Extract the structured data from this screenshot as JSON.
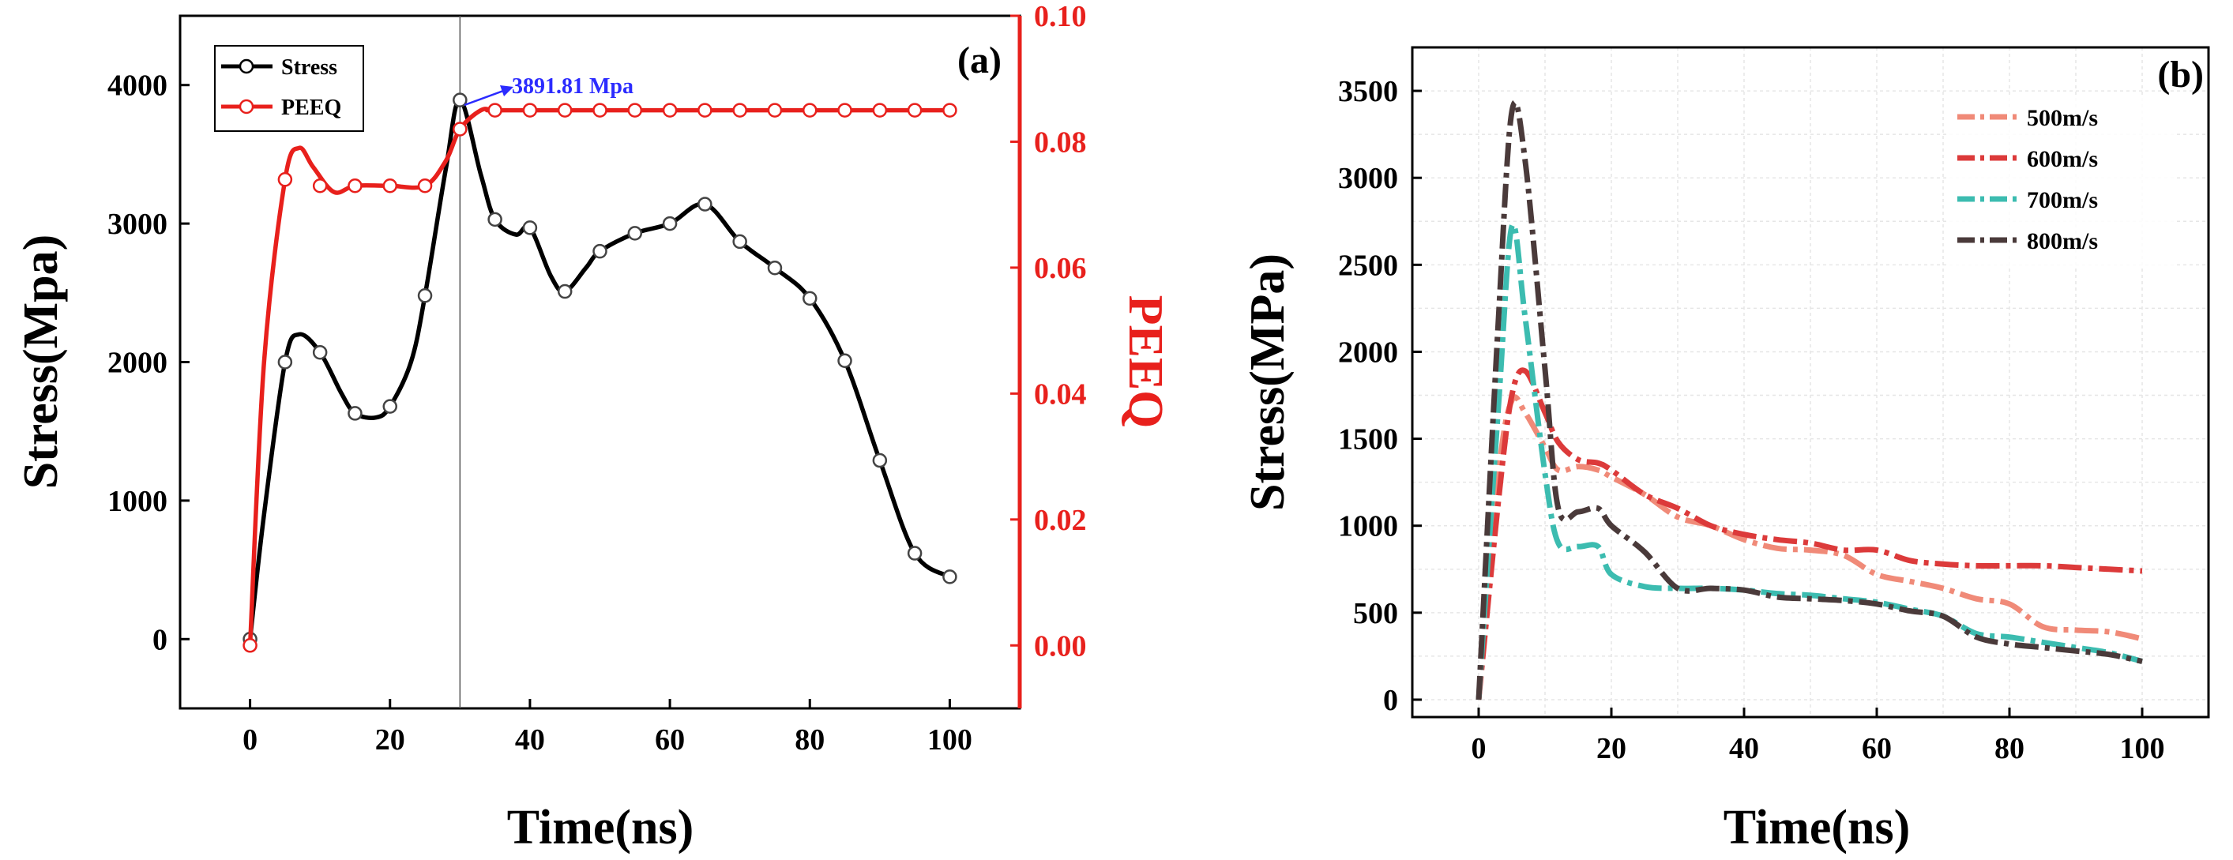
{
  "chart_data": [
    {
      "type": "line",
      "panel_label": "(a)",
      "xlabel": "Time(ns)",
      "ylabel": "Stress(Mpa)",
      "y2label": "PEEQ",
      "xlim": [
        -10,
        110
      ],
      "ylim": [
        -500,
        4500
      ],
      "y2lim": [
        -0.01,
        0.1
      ],
      "xticks": [
        0,
        20,
        40,
        60,
        80,
        100
      ],
      "xtick_labels": [
        "0",
        "20",
        "40",
        "60",
        "80",
        "100"
      ],
      "yticks": [
        0,
        1000,
        2000,
        3000,
        4000
      ],
      "ytick_labels": [
        "0",
        "1000",
        "2000",
        "3000",
        "4000"
      ],
      "y2ticks": [
        0,
        0.02,
        0.04,
        0.06,
        0.08,
        0.1
      ],
      "y2tick_labels": [
        "0.00",
        "0.02",
        "0.04",
        "0.06",
        "0.08",
        "0.10"
      ],
      "series": [
        {
          "name": "Stress",
          "axis": "left",
          "color": "#000000",
          "x": [
            0,
            2,
            5,
            7,
            10,
            13,
            15,
            18,
            20,
            23,
            25,
            28,
            30,
            33,
            35,
            38,
            40,
            43,
            45,
            48,
            50,
            55,
            60,
            65,
            70,
            75,
            80,
            85,
            90,
            95,
            100
          ],
          "y": [
            0,
            900,
            2000,
            2200,
            2070,
            1780,
            1630,
            1600,
            1680,
            2000,
            2480,
            3400,
            3891.81,
            3350,
            3030,
            2920,
            2970,
            2620,
            2510,
            2680,
            2800,
            2930,
            3000,
            3140,
            2870,
            2680,
            2460,
            2010,
            1290,
            620,
            450
          ],
          "markers_x": [
            0,
            5,
            10,
            15,
            20,
            25,
            30,
            35,
            40,
            45,
            50,
            55,
            60,
            65,
            70,
            75,
            80,
            85,
            90,
            95,
            100
          ],
          "markers_y": [
            0,
            2000,
            2070,
            1630,
            1680,
            2480,
            3891.81,
            3030,
            2970,
            2510,
            2800,
            2930,
            3000,
            3140,
            2870,
            2680,
            2460,
            2010,
            1290,
            620,
            450
          ]
        },
        {
          "name": "PEEQ",
          "axis": "right",
          "color": "#e8201c",
          "x": [
            0,
            2,
            5,
            7,
            9,
            12,
            15,
            20,
            25,
            28,
            30,
            33,
            35,
            40,
            100
          ],
          "y": [
            0,
            0.045,
            0.074,
            0.079,
            0.076,
            0.072,
            0.073,
            0.073,
            0.073,
            0.077,
            0.082,
            0.085,
            0.085,
            0.085,
            0.085
          ],
          "markers_x": [
            0,
            5,
            10,
            15,
            20,
            25,
            30,
            35,
            40,
            45,
            50,
            55,
            60,
            65,
            70,
            75,
            80,
            85,
            90,
            95,
            100
          ],
          "markers_y": [
            0,
            0.074,
            0.073,
            0.073,
            0.073,
            0.073,
            0.082,
            0.085,
            0.085,
            0.085,
            0.085,
            0.085,
            0.085,
            0.085,
            0.085,
            0.085,
            0.085,
            0.085,
            0.085,
            0.085,
            0.085
          ]
        }
      ],
      "annotation": {
        "text": "3891.81 Mpa",
        "x": 30,
        "y": 3891.81
      },
      "vline_x": 30,
      "legend": [
        "Stress",
        "PEEQ"
      ],
      "legend_position": "top-left"
    },
    {
      "type": "line",
      "panel_label": "(b)",
      "xlabel": "Time(ns)",
      "ylabel": "Stress(MPa)",
      "xlim": [
        -10,
        110
      ],
      "ylim": [
        -100,
        3750
      ],
      "xticks": [
        0,
        20,
        40,
        60,
        80,
        100
      ],
      "xtick_labels": [
        "0",
        "20",
        "40",
        "60",
        "80",
        "100"
      ],
      "yticks": [
        0,
        500,
        1000,
        1500,
        2000,
        2500,
        3000,
        3500
      ],
      "ytick_labels": [
        "0",
        "500",
        "1000",
        "1500",
        "2000",
        "2500",
        "3000",
        "3500"
      ],
      "grid": true,
      "legend_position": "top-right",
      "series": [
        {
          "name": "500m/s",
          "color": "#f08a78",
          "x": [
            0,
            3,
            5,
            7,
            10,
            12,
            15,
            18,
            20,
            25,
            30,
            35,
            40,
            45,
            50,
            55,
            60,
            65,
            70,
            75,
            80,
            85,
            90,
            95,
            100
          ],
          "y": [
            0,
            1300,
            1720,
            1650,
            1450,
            1320,
            1340,
            1320,
            1280,
            1180,
            1050,
            1000,
            920,
            870,
            860,
            830,
            720,
            680,
            640,
            580,
            550,
            420,
            400,
            390,
            350
          ]
        },
        {
          "name": "600m/s",
          "color": "#dc3a3a",
          "x": [
            0,
            3,
            5,
            7,
            10,
            12,
            15,
            18,
            20,
            25,
            30,
            35,
            40,
            45,
            50,
            55,
            60,
            65,
            70,
            75,
            80,
            85,
            90,
            95,
            100
          ],
          "y": [
            0,
            1150,
            1750,
            1890,
            1650,
            1480,
            1380,
            1360,
            1320,
            1180,
            1100,
            1000,
            950,
            920,
            900,
            860,
            860,
            800,
            780,
            770,
            770,
            770,
            760,
            750,
            740
          ]
        },
        {
          "name": "700m/s",
          "color": "#3cbcb0",
          "x": [
            0,
            3,
            5,
            7,
            10,
            12,
            15,
            18,
            20,
            25,
            30,
            35,
            40,
            45,
            50,
            55,
            60,
            65,
            70,
            75,
            80,
            85,
            90,
            95,
            100
          ],
          "y": [
            0,
            1700,
            2720,
            2200,
            1300,
            900,
            880,
            880,
            720,
            650,
            640,
            640,
            630,
            610,
            600,
            580,
            560,
            520,
            480,
            380,
            360,
            330,
            300,
            270,
            220
          ]
        },
        {
          "name": "800m/s",
          "color": "#4a3a3a",
          "x": [
            0,
            3,
            5,
            7,
            10,
            12,
            15,
            18,
            20,
            25,
            30,
            35,
            40,
            45,
            50,
            55,
            60,
            65,
            70,
            75,
            80,
            85,
            90,
            95,
            100
          ],
          "y": [
            0,
            2200,
            3380,
            3100,
            1900,
            1100,
            1080,
            1100,
            1000,
            850,
            640,
            640,
            630,
            590,
            580,
            570,
            550,
            510,
            480,
            360,
            320,
            300,
            280,
            260,
            220
          ]
        }
      ]
    }
  ]
}
